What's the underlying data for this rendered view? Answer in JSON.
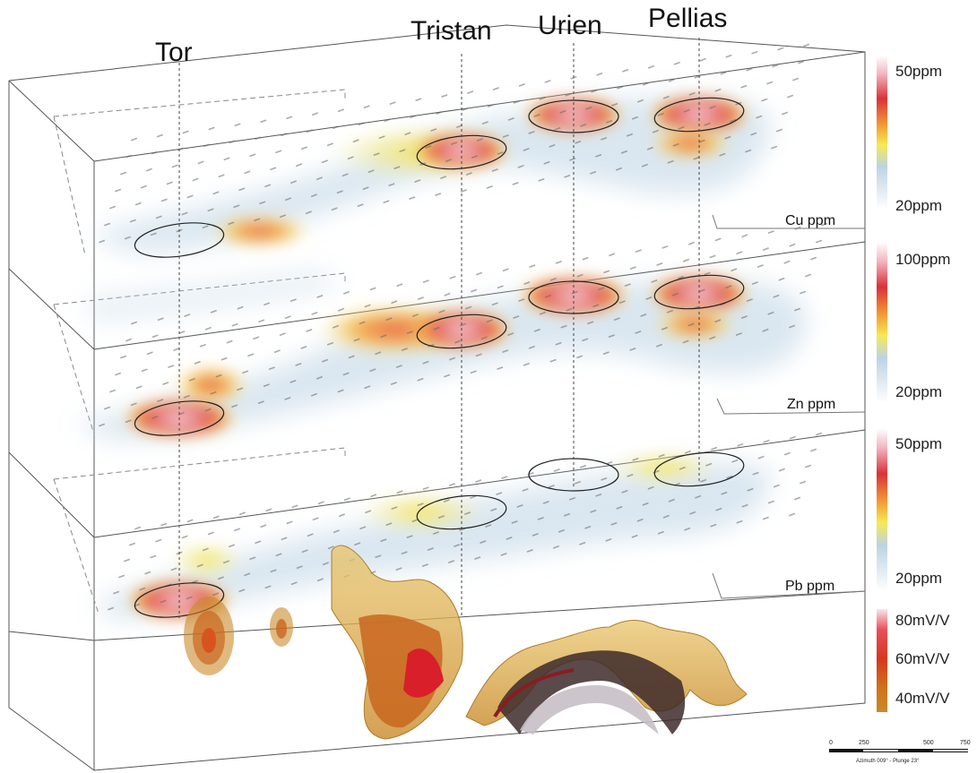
{
  "targets": [
    "Tor",
    "Tristan",
    "Urien",
    "Pellias"
  ],
  "layers": [
    {
      "label": "Cu ppm",
      "scale_top": "50ppm",
      "scale_bottom": "20ppm"
    },
    {
      "label": "Zn ppm",
      "scale_top": "100ppm",
      "scale_bottom": "20ppm"
    },
    {
      "label": "Pb ppm",
      "scale_top": "50ppm",
      "scale_bottom": "20ppm"
    }
  ],
  "ip_scale": [
    "80mV/V",
    "60mV/V",
    "40mV/V"
  ],
  "scale_bar": {
    "ticks": [
      "0",
      "250",
      "500",
      "750"
    ],
    "caption": "Azimuth 009° - Plunge 23°"
  },
  "colors": {
    "hot": "#f7dfe3",
    "red": "#d9463e",
    "orange": "#f08a3a",
    "yellow": "#f4e863",
    "blue": "#bcd3e4",
    "ip_dark": "#a8551a",
    "ip_mid": "#c9661f",
    "ip_light": "#d9a63f"
  }
}
